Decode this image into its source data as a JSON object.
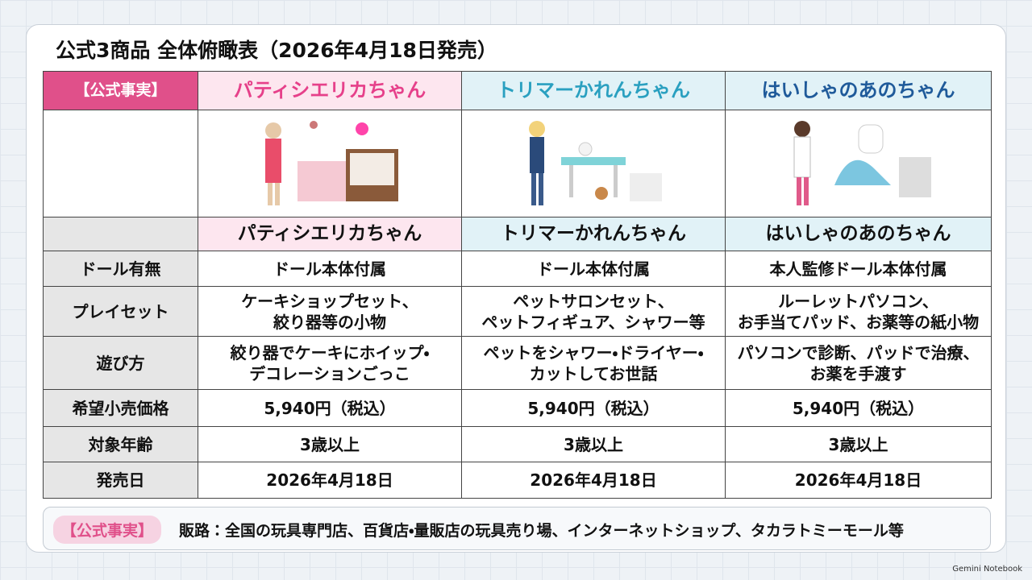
{
  "title": "公式3商品 全体俯瞰表（2026年4月18日発売）",
  "table": {
    "header": [
      "【公式事実】",
      "パティシエリカちゃん",
      "トリマーかれんちゃん",
      "はいしゃのあのちゃん"
    ],
    "names": [
      "パティシエリカちゃん",
      "トリマーかれんちゃん",
      "はいしゃのあのちゃん"
    ],
    "rows": [
      [
        "ドール有無",
        "ドール本体付属",
        "ドール本体付属",
        "本人監修ドール本体付属"
      ],
      [
        "プレイセット",
        "ケーキショップセット、\n絞り器等の小物",
        "ペットサロンセット、\nペットフィギュア、シャワー等",
        "ルーレットパソコン、\nお手当てパッド、お薬等の紙小物"
      ],
      [
        "遊び方",
        "絞り器でケーキにホイップ・\nデコレーションごっこ",
        "ペットをシャワー・ドライヤー・\nカットしてお世話",
        "パソコンで診断、パッドで治療、\nお薬を手渡す"
      ],
      [
        "希望小売価格",
        "5,940円（税込）",
        "5,940円（税込）",
        "5,940円（税込）"
      ],
      [
        "対象年齢",
        "3歳以上",
        "3歳以上",
        "3歳以上"
      ],
      [
        "発売日",
        "2026年4月18日",
        "2026年4月18日",
        "2026年4月18日"
      ]
    ]
  },
  "footer": {
    "badge": "【公式事実】",
    "text": "販路：全国の玩具専門店、百貨店・量販店の玩具売り場、インターネットショップ、タカラトミーモール等"
  },
  "watermark": "Gemini Notebook"
}
